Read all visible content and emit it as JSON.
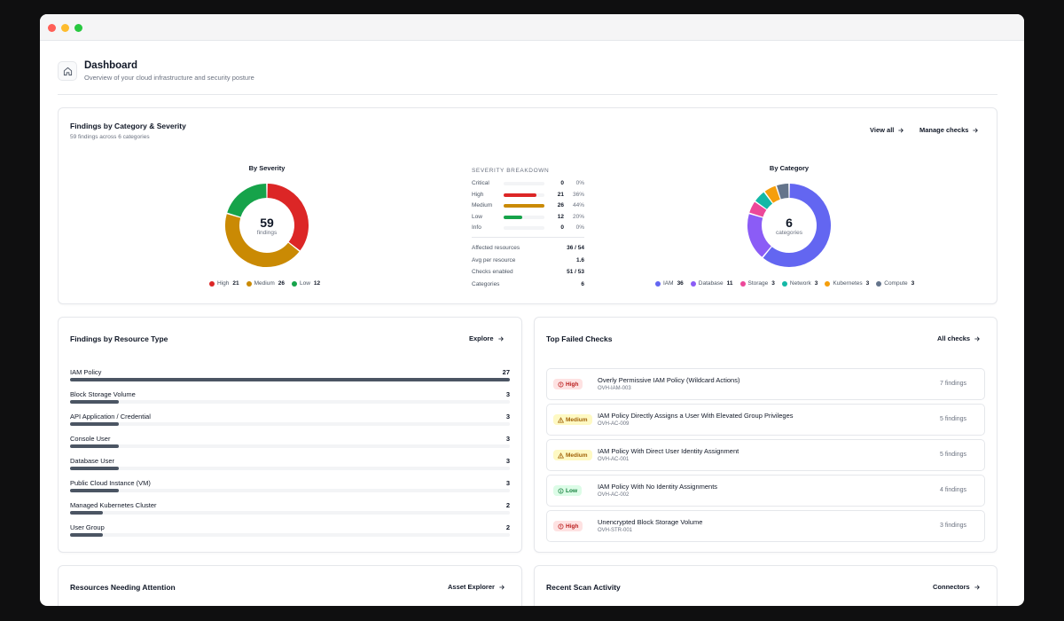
{
  "page": {
    "title": "Dashboard",
    "subtitle": "Overview of your cloud infrastructure and security posture"
  },
  "findings_card": {
    "title": "Findings by Category & Severity",
    "subtitle": "59 findings across 6 categories",
    "view_all": "View all",
    "manage_checks": "Manage checks",
    "by_severity": {
      "title": "By Severity",
      "total": "59",
      "total_label": "findings",
      "legend": [
        {
          "label": "High",
          "value": "21",
          "color": "#dc2626"
        },
        {
          "label": "Medium",
          "value": "26",
          "color": "#ca8a04"
        },
        {
          "label": "Low",
          "value": "12",
          "color": "#16a34a"
        }
      ]
    },
    "breakdown": {
      "title": "SEVERITY BREAKDOWN",
      "rows": [
        {
          "label": "Critical",
          "count": "0",
          "pct": "0%",
          "fraction": 0,
          "color": "#b91c1c"
        },
        {
          "label": "High",
          "count": "21",
          "pct": "36%",
          "fraction": 0.81,
          "color": "#dc2626"
        },
        {
          "label": "Medium",
          "count": "26",
          "pct": "44%",
          "fraction": 1.0,
          "color": "#ca8a04"
        },
        {
          "label": "Low",
          "count": "12",
          "pct": "20%",
          "fraction": 0.46,
          "color": "#16a34a"
        },
        {
          "label": "Info",
          "count": "0",
          "pct": "0%",
          "fraction": 0,
          "color": "#9ca3af"
        }
      ],
      "stats": [
        {
          "label": "Affected resources",
          "value": "36 / 54"
        },
        {
          "label": "Avg per resource",
          "value": "1.6"
        },
        {
          "label": "Checks enabled",
          "value": "51 / 53"
        },
        {
          "label": "Categories",
          "value": "6"
        }
      ]
    },
    "by_category": {
      "title": "By Category",
      "total": "6",
      "total_label": "categories",
      "legend": [
        {
          "label": "IAM",
          "value": "36",
          "color": "#6366f1"
        },
        {
          "label": "Database",
          "value": "11",
          "color": "#8b5cf6"
        },
        {
          "label": "Storage",
          "value": "3",
          "color": "#ec4899"
        },
        {
          "label": "Network",
          "value": "3",
          "color": "#14b8a6"
        },
        {
          "label": "Kubernetes",
          "value": "3",
          "color": "#f59e0b"
        },
        {
          "label": "Compute",
          "value": "3",
          "color": "#64748b"
        }
      ]
    }
  },
  "resource_card": {
    "title": "Findings by Resource Type",
    "explore": "Explore",
    "max": 27,
    "rows": [
      {
        "label": "IAM Policy",
        "count": "27",
        "value": 27
      },
      {
        "label": "Block Storage Volume",
        "count": "3",
        "value": 3
      },
      {
        "label": "API Application / Credential",
        "count": "3",
        "value": 3
      },
      {
        "label": "Console User",
        "count": "3",
        "value": 3
      },
      {
        "label": "Database User",
        "count": "3",
        "value": 3
      },
      {
        "label": "Public Cloud Instance (VM)",
        "count": "3",
        "value": 3
      },
      {
        "label": "Managed Kubernetes Cluster",
        "count": "2",
        "value": 2
      },
      {
        "label": "User Group",
        "count": "2",
        "value": 2
      }
    ]
  },
  "checks_card": {
    "title": "Top Failed Checks",
    "all_checks": "All checks",
    "rows": [
      {
        "severity": "High",
        "icon": "alert-circle-icon",
        "title": "Overly Permissive IAM Policy (Wildcard Actions)",
        "id": "OVH-IAM-003",
        "count": "7 findings",
        "bg": "#fee2e2",
        "fg": "#b91c1c"
      },
      {
        "severity": "Medium",
        "icon": "warning-triangle-icon",
        "title": "IAM Policy Directly Assigns a User With Elevated Group Privileges",
        "id": "OVH-AC-009",
        "count": "5 findings",
        "bg": "#fef9c3",
        "fg": "#a16207"
      },
      {
        "severity": "Medium",
        "icon": "warning-triangle-icon",
        "title": "IAM Policy With Direct User Identity Assignment",
        "id": "OVH-AC-001",
        "count": "5 findings",
        "bg": "#fef9c3",
        "fg": "#a16207"
      },
      {
        "severity": "Low",
        "icon": "info-circle-icon",
        "title": "IAM Policy With No Identity Assignments",
        "id": "OVH-AC-002",
        "count": "4 findings",
        "bg": "#dcfce7",
        "fg": "#15803d"
      },
      {
        "severity": "High",
        "icon": "alert-circle-icon",
        "title": "Unencrypted Block Storage Volume",
        "id": "OVH-STR-001",
        "count": "3 findings",
        "bg": "#fee2e2",
        "fg": "#b91c1c"
      }
    ]
  },
  "attention_card": {
    "title": "Resources Needing Attention",
    "link": "Asset Explorer"
  },
  "scan_card": {
    "title": "Recent Scan Activity",
    "link": "Connectors"
  }
}
